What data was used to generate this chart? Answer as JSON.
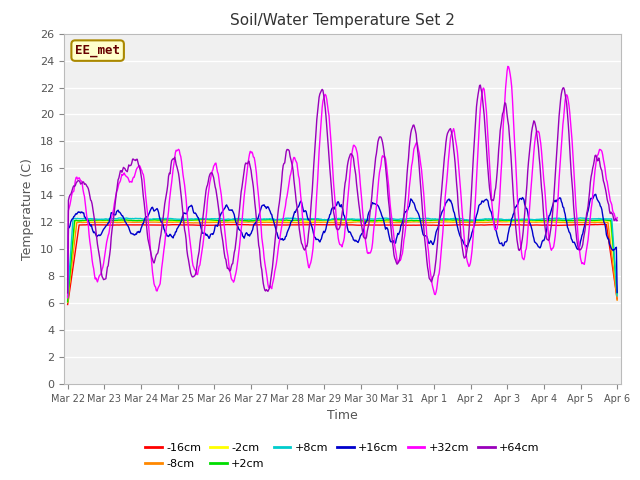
{
  "title": "Soil/Water Temperature Set 2",
  "xlabel": "Time",
  "ylabel": "Temperature (C)",
  "ylim": [
    0,
    26
  ],
  "yticks": [
    0,
    2,
    4,
    6,
    8,
    10,
    12,
    14,
    16,
    18,
    20,
    22,
    24,
    26
  ],
  "facecolor": "#ffffff",
  "plot_bg_color": "#f0f0f0",
  "series_colors": {
    "-16cm": "#ff0000",
    "-8cm": "#ff8800",
    "-2cm": "#ffff00",
    "+2cm": "#00dd00",
    "+8cm": "#00cccc",
    "+16cm": "#0000cc",
    "+32cm": "#ff00ff",
    "+64cm": "#9900bb"
  },
  "watermark": "EE_met",
  "x_tick_labels": [
    "Mar 22",
    "Mar 23",
    "Mar 24",
    "Mar 25",
    "Mar 26",
    "Mar 27",
    "Mar 28",
    "Mar 29",
    "Mar 30",
    "Mar 31",
    "Apr 1",
    "Apr 2",
    "Apr 3",
    "Apr 4",
    "Apr 5",
    "Apr 6"
  ],
  "x_tick_positions": [
    0,
    1,
    2,
    3,
    4,
    5,
    6,
    7,
    8,
    9,
    10,
    11,
    12,
    13,
    14,
    15
  ],
  "legend_row1": [
    "-16cm",
    "-8cm",
    "-2cm",
    "+2cm",
    "+8cm",
    "+16cm"
  ],
  "legend_row2": [
    "+32cm",
    "+64cm"
  ]
}
